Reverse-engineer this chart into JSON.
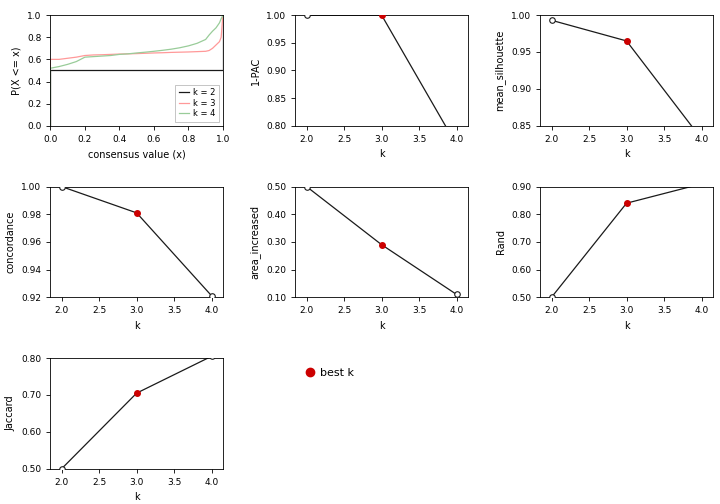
{
  "ecdf": {
    "k2_x": [
      0.0,
      0.0,
      0.999,
      0.999,
      1.0,
      1.0
    ],
    "k2_y": [
      0.0,
      0.5,
      0.5,
      0.5,
      0.5,
      1.0
    ],
    "k3_x": [
      0.0,
      0.0,
      0.05,
      0.1,
      0.15,
      0.2,
      0.25,
      0.3,
      0.35,
      0.4,
      0.45,
      0.5,
      0.55,
      0.6,
      0.65,
      0.7,
      0.75,
      0.8,
      0.85,
      0.9,
      0.92,
      0.94,
      0.96,
      0.98,
      0.99,
      1.0
    ],
    "k3_y": [
      0.0,
      0.6,
      0.6,
      0.61,
      0.62,
      0.635,
      0.64,
      0.642,
      0.645,
      0.648,
      0.65,
      0.652,
      0.655,
      0.658,
      0.66,
      0.663,
      0.665,
      0.667,
      0.67,
      0.673,
      0.68,
      0.7,
      0.73,
      0.76,
      0.8,
      1.0
    ],
    "k4_x": [
      0.0,
      0.0,
      0.05,
      0.1,
      0.15,
      0.2,
      0.25,
      0.3,
      0.35,
      0.4,
      0.45,
      0.5,
      0.55,
      0.6,
      0.65,
      0.7,
      0.75,
      0.8,
      0.85,
      0.9,
      0.92,
      0.94,
      0.96,
      0.98,
      0.99,
      1.0
    ],
    "k4_y": [
      0.0,
      0.52,
      0.535,
      0.555,
      0.58,
      0.62,
      0.625,
      0.63,
      0.635,
      0.645,
      0.65,
      0.658,
      0.665,
      0.673,
      0.682,
      0.692,
      0.705,
      0.722,
      0.745,
      0.78,
      0.82,
      0.855,
      0.885,
      0.93,
      0.968,
      1.0
    ],
    "colors": {
      "k2": "#1a1a1a",
      "k3": "#FF9999",
      "k4": "#99CC99"
    },
    "xlabel": "consensus value (x)",
    "ylabel": "P(X <= x)",
    "legend_labels": [
      "k = 2",
      "k = 3",
      "k = 4"
    ],
    "ylim": [
      0.0,
      1.0
    ],
    "xlim": [
      0.0,
      1.0
    ]
  },
  "pac": {
    "k": [
      2,
      3,
      4
    ],
    "y": [
      1.0,
      1.0,
      0.765
    ],
    "ylabel": "1-PAC",
    "xlabel": "k",
    "ylim": [
      0.8,
      1.0
    ],
    "yticks": [
      0.8,
      0.85,
      0.9,
      0.95,
      1.0
    ],
    "best_k": 3
  },
  "silhouette": {
    "k": [
      2,
      3,
      4
    ],
    "y": [
      0.993,
      0.965,
      0.832
    ],
    "ylabel": "mean_silhouette",
    "xlabel": "k",
    "ylim": [
      0.85,
      1.0
    ],
    "yticks": [
      0.85,
      0.9,
      0.95,
      1.0
    ],
    "best_k": 3
  },
  "concordance": {
    "k": [
      2,
      3,
      4
    ],
    "y": [
      1.0,
      0.981,
      0.921
    ],
    "ylabel": "concordance",
    "xlabel": "k",
    "ylim": [
      0.92,
      1.0
    ],
    "yticks": [
      0.92,
      0.94,
      0.96,
      0.98,
      1.0
    ],
    "best_k": 3
  },
  "area_increased": {
    "k": [
      2,
      3,
      4
    ],
    "y": [
      0.5,
      0.29,
      0.11
    ],
    "ylabel": "area_increased",
    "xlabel": "k",
    "ylim": [
      0.1,
      0.5
    ],
    "yticks": [
      0.1,
      0.2,
      0.3,
      0.4,
      0.5
    ],
    "best_k": 3
  },
  "rand": {
    "k": [
      2,
      3,
      4
    ],
    "y": [
      0.5,
      0.84,
      0.91
    ],
    "ylabel": "Rand",
    "xlabel": "k",
    "ylim": [
      0.5,
      0.9
    ],
    "yticks": [
      0.5,
      0.6,
      0.7,
      0.8,
      0.9
    ],
    "best_k": 3
  },
  "jaccard": {
    "k": [
      2,
      3,
      4
    ],
    "y": [
      0.5,
      0.705,
      0.805
    ],
    "ylabel": "Jaccard",
    "xlabel": "k",
    "ylim": [
      0.5,
      0.8
    ],
    "yticks": [
      0.5,
      0.6,
      0.7,
      0.8
    ],
    "best_k": 3
  },
  "best_k_color": "#CC0000",
  "line_color": "#1a1a1a",
  "background": "#FFFFFF"
}
